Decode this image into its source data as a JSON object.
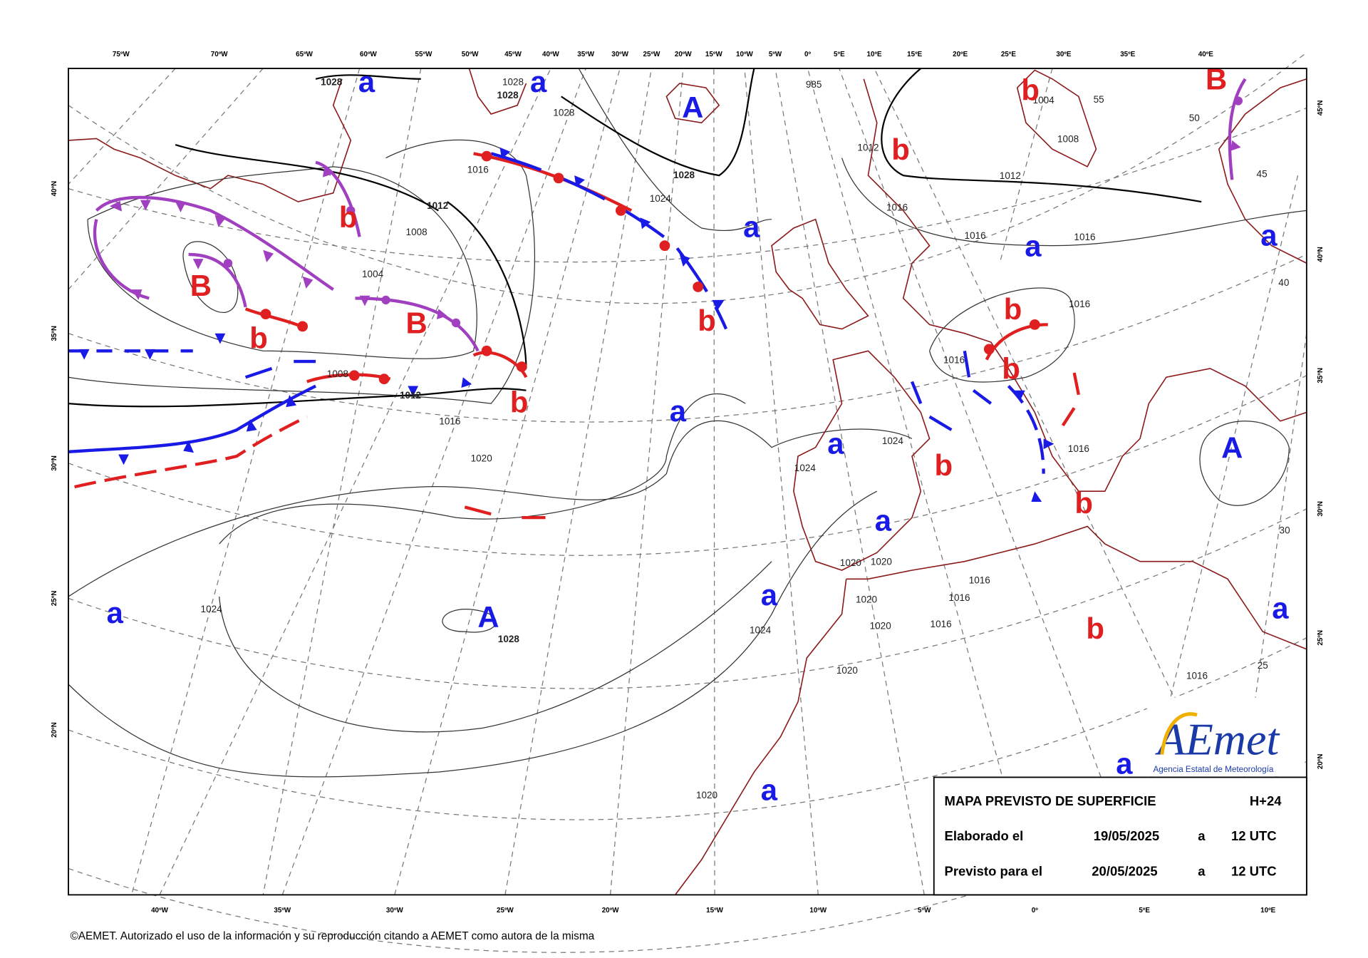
{
  "map": {
    "top_labels": [
      "75ºW",
      "70ºW",
      "65ºW",
      "60ºW",
      "55ºW",
      "50ºW",
      "45ºW",
      "40ºW",
      "35ºW",
      "30ºW",
      "25ºW",
      "20ºW",
      "15ºW",
      "10ºW",
      "5ºW",
      "0º",
      "5ºE",
      "10ºE",
      "15ºE",
      "20ºE",
      "25ºE",
      "30ºE",
      "35ºE",
      "40ºE"
    ],
    "bottom_labels": [
      "40ºW",
      "35ºW",
      "30ºW",
      "25ºW",
      "20ºW",
      "15ºW",
      "10ºW",
      "5ºW",
      "0º",
      "5ºE",
      "10ºE"
    ],
    "left_labels": [
      "40ºN",
      "35ºN",
      "30ºN",
      "25ºN",
      "20ºN"
    ],
    "right_labels": [
      "45ºN",
      "40ºN",
      "35ºN",
      "30ºN",
      "25ºN",
      "20ºN"
    ],
    "pressure_centers": [
      "a",
      "a",
      "A",
      "b",
      "B",
      "b",
      "b",
      "a",
      "a",
      "a",
      "B",
      "B",
      "b",
      "b",
      "b",
      "b",
      "b",
      "a",
      "a",
      "A",
      "b",
      "b",
      "a",
      "a",
      "a",
      "A",
      "a",
      "b",
      "a",
      "a"
    ],
    "isobar_labels": [
      "1028",
      "1028",
      "1028",
      "1028",
      "1028",
      "1012",
      "1012",
      "1012",
      "1012",
      "1008",
      "1008",
      "1008",
      "1004",
      "1004",
      "1016",
      "1016",
      "1016",
      "1016",
      "1016",
      "1016",
      "1016",
      "1016",
      "1016",
      "1016",
      "1016",
      "1016",
      "1020",
      "1020",
      "1020",
      "1020",
      "1020",
      "1020",
      "1020",
      "1024",
      "1024",
      "1024",
      "1024",
      "1024",
      "1028",
      "985",
      "55",
      "50",
      "45",
      "40",
      "30",
      "25"
    ]
  },
  "info_box": {
    "title": "MAPA PREVISTO DE SUPERFICIE",
    "lead_time": "H+24",
    "made_label": "Elaborado el",
    "made_date": "19/05/2025",
    "made_at": "a",
    "made_time": "12 UTC",
    "valid_label": "Previsto para el",
    "valid_date": "20/05/2025",
    "valid_at": "a",
    "valid_time": "12 UTC"
  },
  "logo": {
    "name": "AEmet",
    "subtitle": "Agencia Estatal de Meteorología"
  },
  "footer": {
    "copyright": "©AEMET. Autorizado el uso de la información y su reproducción citando a AEMET como autora de la misma"
  }
}
